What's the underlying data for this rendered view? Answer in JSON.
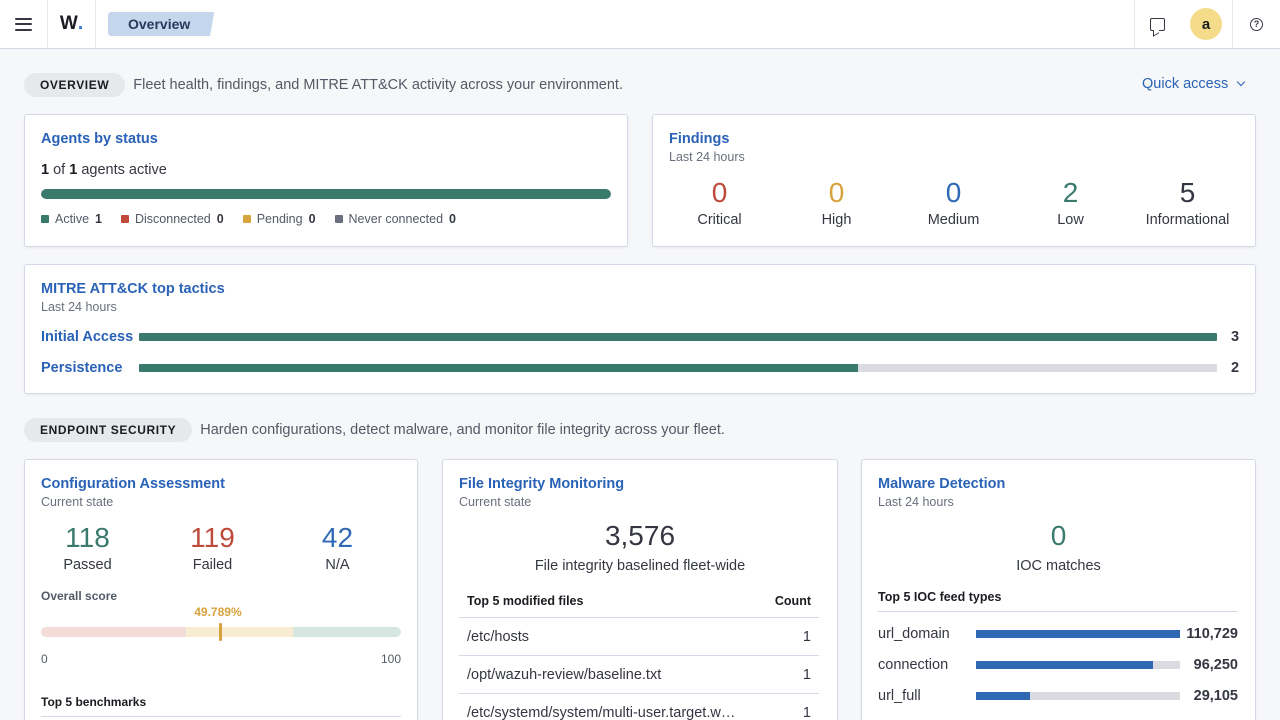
{
  "header": {
    "logo": "W",
    "logo_dot": ".",
    "breadcrumb": "Overview",
    "avatar_initial": "a"
  },
  "overview_section": {
    "badge": "OVERVIEW",
    "description": "Fleet health, findings, and MITRE ATT&CK activity across your environment.",
    "quick_access": "Quick access"
  },
  "agents": {
    "title": "Agents by status",
    "active_count": "1",
    "of_text": " of ",
    "total_count": "1",
    "suffix_text": " agents active",
    "active_fraction": 1.0,
    "legend": [
      {
        "label": "Active",
        "count": "1",
        "color": "#3a7a6c"
      },
      {
        "label": "Disconnected",
        "count": "0",
        "color": "#bd4a3a"
      },
      {
        "label": "Pending",
        "count": "0",
        "color": "#d7a33c"
      },
      {
        "label": "Never connected",
        "count": "0",
        "color": "#69707d"
      }
    ]
  },
  "findings": {
    "title": "Findings",
    "subtitle": "Last 24 hours",
    "items": [
      {
        "value": "0",
        "label": "Critical",
        "color": "#bd4a3a"
      },
      {
        "value": "0",
        "label": "High",
        "color": "#d7a33c"
      },
      {
        "value": "0",
        "label": "Medium",
        "color": "#2f69b5"
      },
      {
        "value": "2",
        "label": "Low",
        "color": "#3a7a6c"
      },
      {
        "value": "5",
        "label": "Informational",
        "color": "#343741"
      }
    ]
  },
  "mitre": {
    "title": "MITRE ATT&CK top tactics",
    "subtitle": "Last 24 hours",
    "max": 3,
    "tactics": [
      {
        "name": "Initial Access",
        "count": 3
      },
      {
        "name": "Persistence",
        "count": 2
      }
    ]
  },
  "endpoint_section": {
    "badge": "ENDPOINT SECURITY",
    "description": "Harden configurations, detect malware, and monitor file integrity across your fleet."
  },
  "config": {
    "title": "Configuration Assessment",
    "subtitle": "Current state",
    "stats": [
      {
        "value": "118",
        "label": "Passed",
        "color": "#3a7a6c"
      },
      {
        "value": "119",
        "label": "Failed",
        "color": "#bd4a3a"
      },
      {
        "value": "42",
        "label": "N/A",
        "color": "#2f69b5"
      }
    ],
    "score_label": "Overall score",
    "score_value": 49.789,
    "score_text": "49.789%",
    "axis_min": "0",
    "axis_max": "100",
    "benchmarks_label": "Top 5 benchmarks"
  },
  "fim": {
    "title": "File Integrity Monitoring",
    "subtitle": "Current state",
    "total": "3,576",
    "total_label": "File integrity baselined fleet-wide",
    "table_header_file": "Top 5 modified files",
    "table_header_count": "Count",
    "rows": [
      {
        "path": "/etc/hosts",
        "count": "1"
      },
      {
        "path": "/opt/wazuh-review/baseline.txt",
        "count": "1"
      },
      {
        "path": "/etc/systemd/system/multi-user.target.wants/wazuh-agent.service",
        "count": "1"
      }
    ]
  },
  "malware": {
    "title": "Malware Detection",
    "subtitle": "Last 24 hours",
    "matches": "0",
    "matches_label": "IOC matches",
    "feed_header": "Top 5 IOC feed types",
    "max": 110729,
    "feeds": [
      {
        "name": "url_domain",
        "value": 110729,
        "text": "110,729"
      },
      {
        "name": "connection",
        "value": 96250,
        "text": "96,250"
      },
      {
        "name": "url_full",
        "value": 29105,
        "text": "29,105"
      }
    ]
  }
}
